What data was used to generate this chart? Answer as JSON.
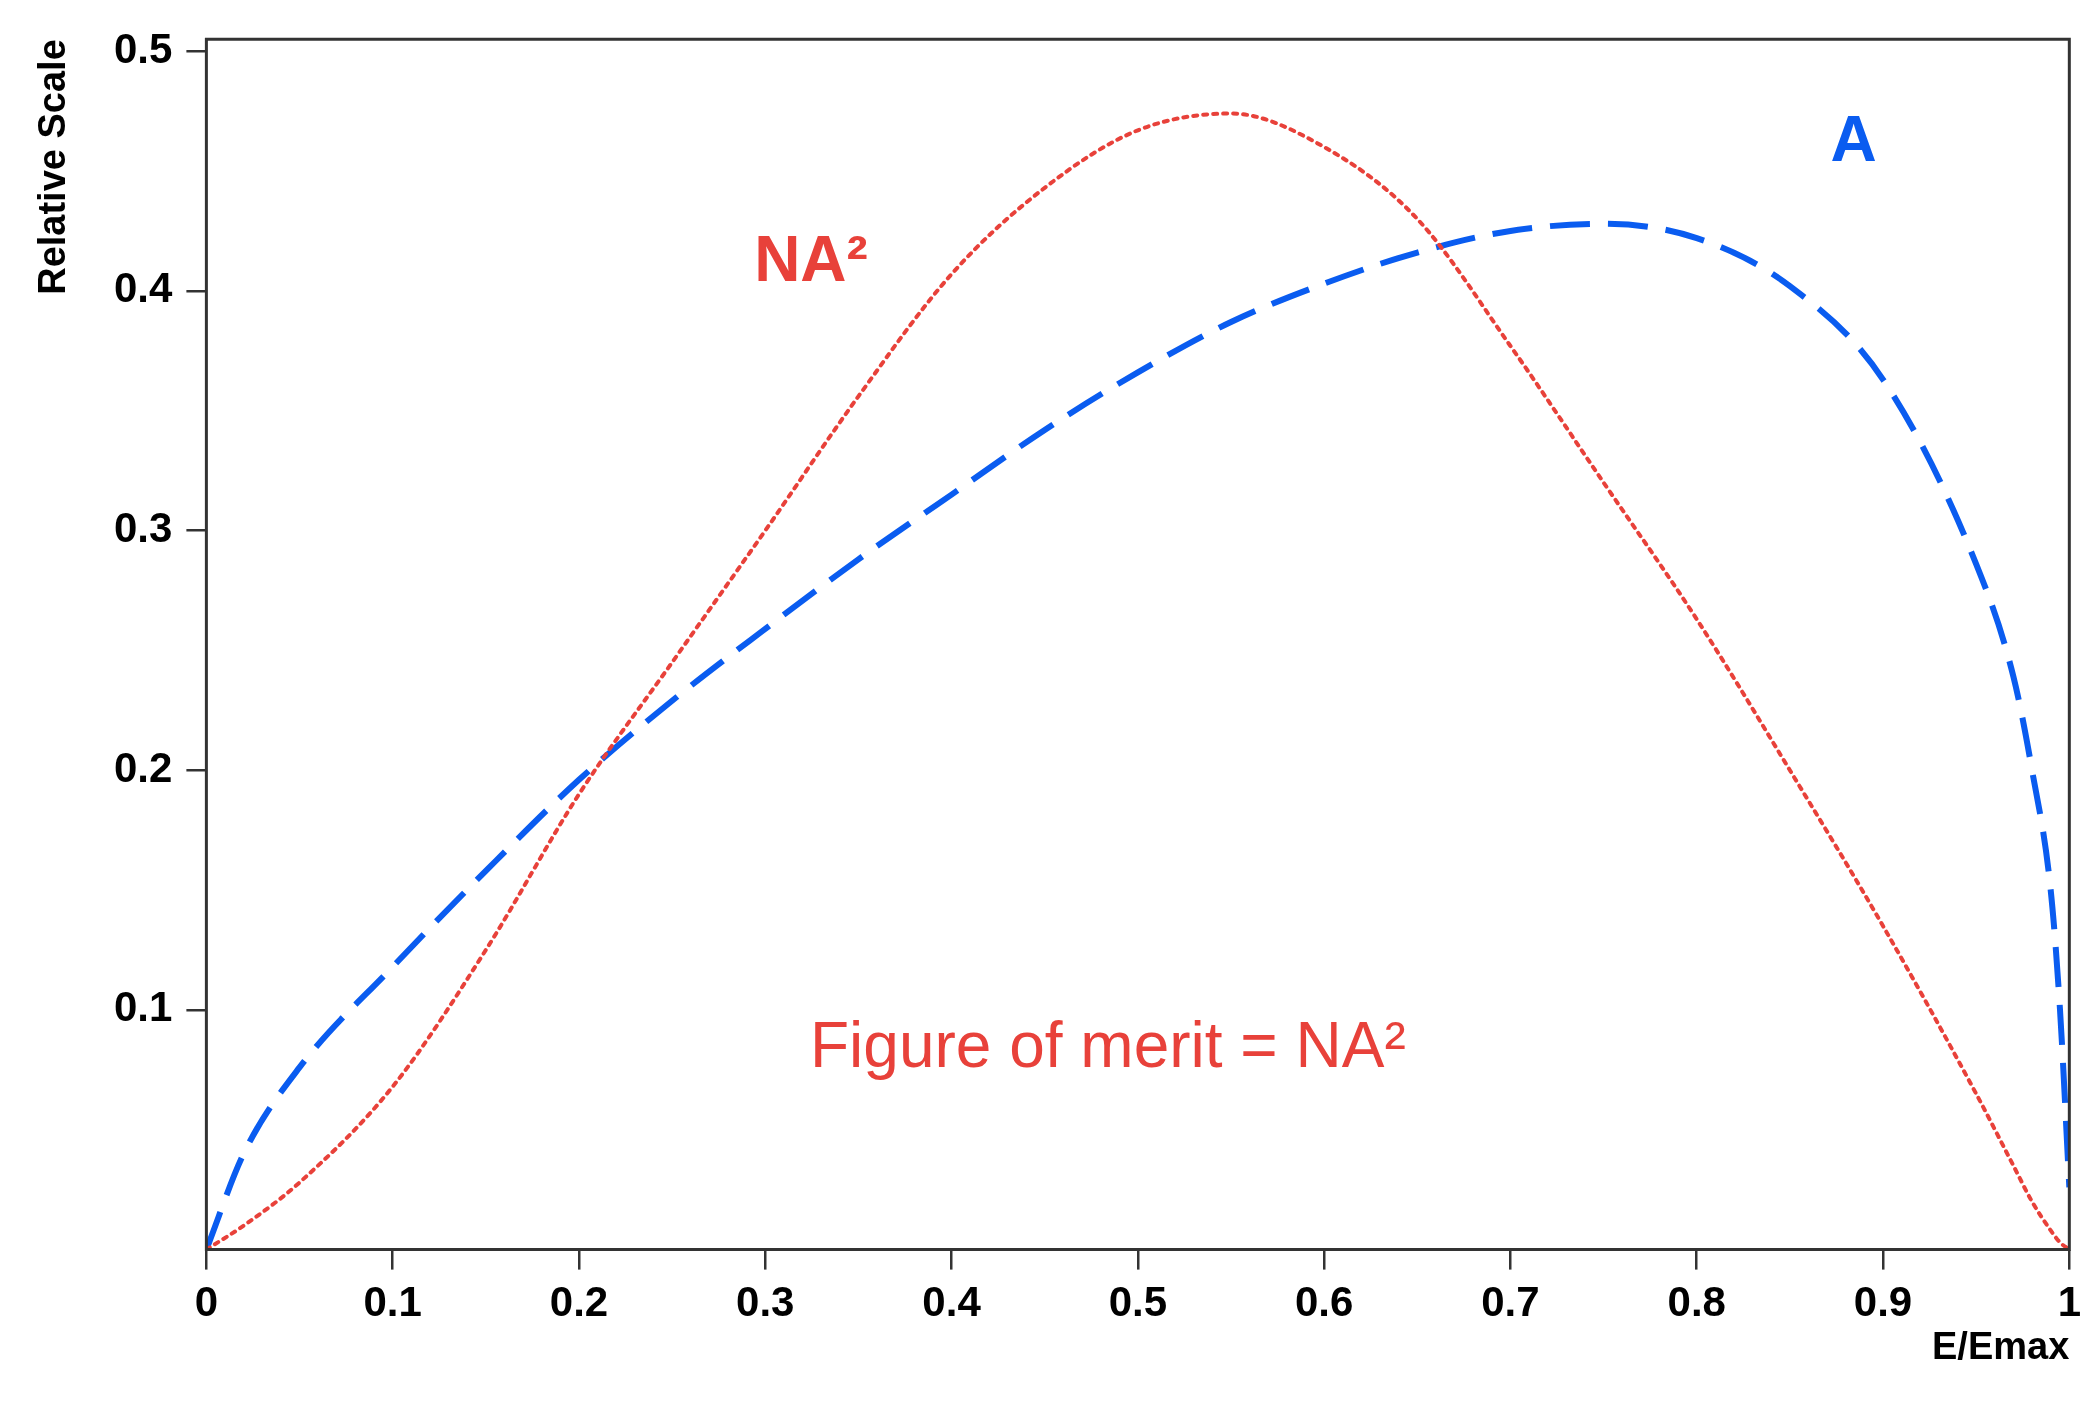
{
  "chart_data": {
    "type": "line",
    "xlabel": "E/Emax",
    "ylabel": "Relative Scale",
    "x": [
      0,
      0.02,
      0.05,
      0.1,
      0.15,
      0.2,
      0.25,
      0.3,
      0.35,
      0.4,
      0.45,
      0.5,
      0.55,
      0.6,
      0.65,
      0.7,
      0.75,
      0.8,
      0.85,
      0.9,
      0.95,
      0.97,
      0.98,
      0.99,
      0.995,
      1
    ],
    "series": [
      {
        "name": "NA²",
        "color": "#e8413a",
        "line_style": "dotted",
        "values": [
          0,
          0.01,
          0.028,
          0.068,
          0.125,
          0.19,
          0.245,
          0.3,
          0.356,
          0.407,
          0.443,
          0.467,
          0.474,
          0.46,
          0.43,
          0.377,
          0.32,
          0.263,
          0.2,
          0.135,
          0.065,
          0.035,
          0.02,
          0.008,
          0.003,
          0
        ]
      },
      {
        "name": "A",
        "color": "#0a5cf0",
        "line_style": "dashed",
        "values": [
          0,
          0.04,
          0.076,
          0.118,
          0.158,
          0.196,
          0.229,
          0.259,
          0.288,
          0.315,
          0.342,
          0.366,
          0.387,
          0.403,
          0.416,
          0.425,
          0.428,
          0.422,
          0.402,
          0.363,
          0.286,
          0.239,
          0.2,
          0.15,
          0.1,
          0.026
        ]
      }
    ],
    "xlim": [
      0,
      1
    ],
    "ylim": [
      0,
      0.505
    ],
    "xticks": [
      0,
      0.1,
      0.2,
      0.3,
      0.4,
      0.5,
      0.6,
      0.7,
      0.8,
      0.9,
      1
    ],
    "yticks": [
      0.1,
      0.2,
      0.3,
      0.4,
      0.5
    ],
    "grid": false,
    "legend": false,
    "marker": "none",
    "annotations": [
      "Figure of merit = NA²"
    ]
  }
}
